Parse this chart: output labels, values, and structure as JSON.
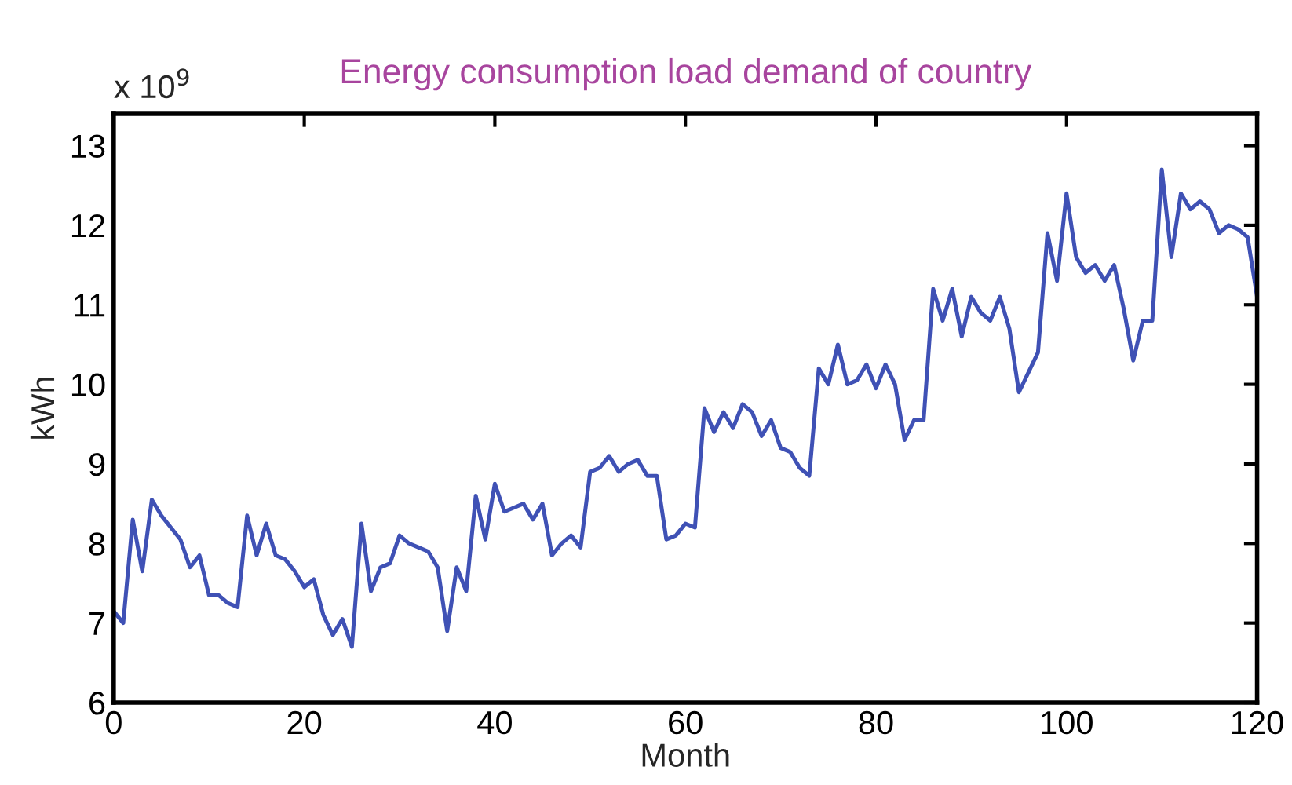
{
  "chart_data": {
    "type": "line",
    "title": "Energy consumption load demand of country",
    "xlabel": "Month",
    "ylabel": "kWh",
    "annotations": [
      "x 10$^{9}$"
    ],
    "x": [
      0,
      1,
      2,
      3,
      4,
      5,
      6,
      7,
      8,
      9,
      10,
      11,
      12,
      13,
      14,
      15,
      16,
      17,
      18,
      19,
      20,
      21,
      22,
      23,
      24,
      25,
      26,
      27,
      28,
      29,
      30,
      31,
      32,
      33,
      34,
      35,
      36,
      37,
      38,
      39,
      40,
      41,
      42,
      43,
      44,
      45,
      46,
      47,
      48,
      49,
      50,
      51,
      52,
      53,
      54,
      55,
      56,
      57,
      58,
      59,
      60,
      61,
      62,
      63,
      64,
      65,
      66,
      67,
      68,
      69,
      70,
      71,
      72,
      73,
      74,
      75,
      76,
      77,
      78,
      79,
      80,
      81,
      82,
      83,
      84,
      85,
      86,
      87,
      88,
      89,
      90,
      91,
      92,
      93,
      94,
      95,
      96,
      97,
      98,
      99,
      100,
      101,
      102,
      103,
      104,
      105,
      106,
      107,
      108,
      109,
      110,
      111,
      112,
      113,
      114,
      115,
      116,
      117,
      118,
      119,
      120
    ],
    "series": [
      {
        "color": "#3f51b5",
        "values": [
          7.15,
          7.0,
          8.3,
          7.65,
          8.55,
          8.35,
          8.2,
          8.05,
          7.7,
          7.85,
          7.35,
          7.35,
          7.25,
          7.2,
          8.35,
          7.85,
          8.25,
          7.85,
          7.8,
          7.65,
          7.45,
          7.55,
          7.1,
          6.85,
          7.05,
          6.7,
          8.25,
          7.4,
          7.7,
          7.75,
          8.1,
          8.0,
          7.95,
          7.9,
          7.7,
          6.9,
          7.7,
          7.4,
          8.6,
          8.05,
          8.75,
          8.4,
          8.45,
          8.5,
          8.3,
          8.5,
          7.85,
          8.0,
          8.1,
          7.95,
          8.9,
          8.95,
          9.1,
          8.9,
          9.0,
          9.05,
          8.85,
          8.85,
          8.05,
          8.1,
          8.25,
          8.2,
          9.7,
          9.4,
          9.65,
          9.45,
          9.75,
          9.65,
          9.35,
          9.55,
          9.2,
          9.15,
          8.95,
          8.85,
          10.2,
          10.0,
          10.5,
          10.0,
          10.05,
          10.25,
          9.95,
          10.25,
          10.0,
          9.3,
          9.55,
          9.55,
          11.2,
          10.8,
          11.2,
          10.6,
          11.1,
          10.9,
          10.8,
          11.1,
          10.7,
          9.9,
          10.15,
          10.4,
          11.9,
          11.3,
          12.4,
          11.6,
          11.4,
          11.5,
          11.3,
          11.5,
          10.95,
          10.3,
          10.8,
          10.8,
          12.7,
          11.6,
          12.4,
          12.2,
          12.3,
          12.2,
          11.9,
          12.0,
          11.95,
          11.85,
          11.1
        ]
      }
    ],
    "xlim": [
      0,
      120
    ],
    "xticks": [
      0,
      20,
      40,
      60,
      80,
      100,
      120
    ],
    "ylim": [
      6,
      13.4
    ],
    "yticks": [
      6,
      7,
      8,
      9,
      10,
      11,
      12,
      13
    ],
    "grid": false,
    "legend": false,
    "marker": "none",
    "line_style": "solid"
  }
}
